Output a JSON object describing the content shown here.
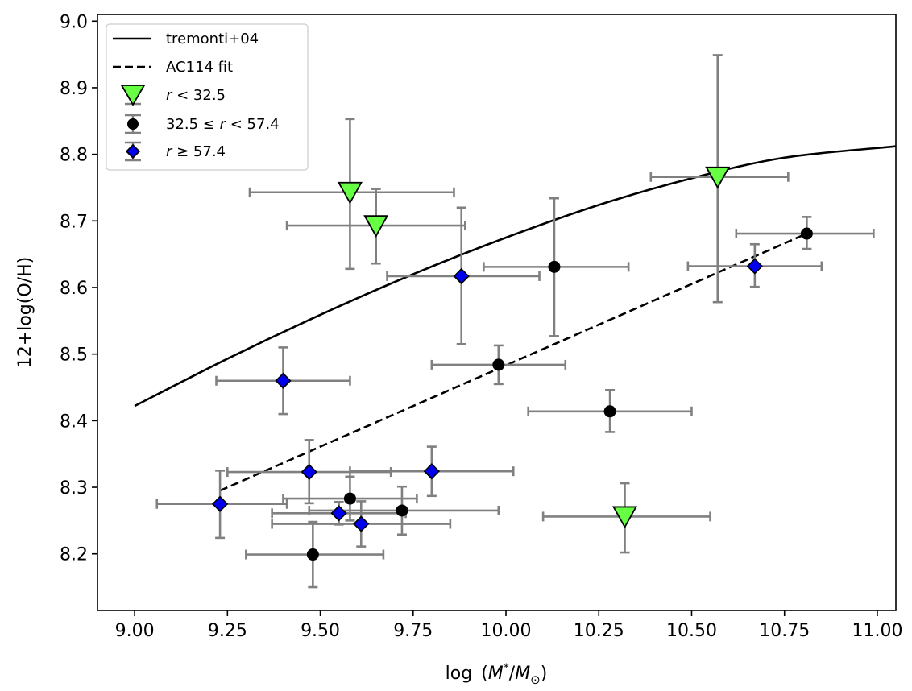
{
  "chart_data": {
    "type": "scatter",
    "title": "",
    "xlabel": "log (M*/M☉)",
    "ylabel": "12+log(O/H)",
    "xlim": [
      8.9,
      11.05
    ],
    "ylim": [
      8.115,
      9.01
    ],
    "xticks": [
      "9.00",
      "9.25",
      "9.50",
      "9.75",
      "10.00",
      "10.25",
      "10.50",
      "10.75",
      "11.00"
    ],
    "yticks": [
      "8.2",
      "8.3",
      "8.4",
      "8.5",
      "8.6",
      "8.7",
      "8.8",
      "8.9",
      "9.0"
    ],
    "grid": false,
    "legend_position": "top-left",
    "error_bar_color": "#808080",
    "lines": [
      {
        "name": "tremonti+04",
        "style": "solid",
        "color": "#000000",
        "x": [
          9.0,
          9.25,
          9.5,
          9.75,
          10.0,
          10.25,
          10.5,
          10.75,
          11.05
        ],
        "y": [
          8.422,
          8.493,
          8.559,
          8.62,
          8.675,
          8.724,
          8.764,
          8.795,
          8.812
        ]
      },
      {
        "name": "AC114 fit",
        "style": "dashed",
        "color": "#000000",
        "x": [
          9.23,
          10.81
        ],
        "y": [
          8.295,
          8.681
        ]
      }
    ],
    "series": [
      {
        "name": "r < 32.5",
        "legend_label": "r < 32.5",
        "marker": "triangle-down",
        "color": "#66ff44",
        "points": [
          {
            "x": 9.58,
            "y": 8.743,
            "xerr": [
              0.27,
              0.28
            ],
            "yerr": [
              0.115,
              0.11
            ]
          },
          {
            "x": 9.65,
            "y": 8.693,
            "xerr": [
              0.24,
              0.24
            ],
            "yerr": [
              0.057,
              0.055
            ]
          },
          {
            "x": 10.57,
            "y": 8.766,
            "xerr": [
              0.18,
              0.19
            ],
            "yerr": [
              0.188,
              0.183
            ]
          },
          {
            "x": 10.32,
            "y": 8.256,
            "xerr": [
              0.22,
              0.23
            ],
            "yerr": [
              0.054,
              0.05
            ]
          }
        ]
      },
      {
        "name": "32.5 ≤ r < 57.4",
        "legend_label": "32.5 ≤ r < 57.4",
        "marker": "circle",
        "color": "#000000",
        "points": [
          {
            "x": 10.81,
            "y": 8.681,
            "xerr": [
              0.19,
              0.18
            ],
            "yerr": [
              0.023,
              0.025
            ]
          },
          {
            "x": 10.13,
            "y": 8.631,
            "xerr": [
              0.19,
              0.2
            ],
            "yerr": [
              0.104,
              0.103
            ]
          },
          {
            "x": 9.98,
            "y": 8.484,
            "xerr": [
              0.18,
              0.18
            ],
            "yerr": [
              0.029,
              0.029
            ]
          },
          {
            "x": 10.28,
            "y": 8.414,
            "xerr": [
              0.22,
              0.22
            ],
            "yerr": [
              0.031,
              0.032
            ]
          },
          {
            "x": 9.58,
            "y": 8.283,
            "xerr": [
              0.18,
              0.18
            ],
            "yerr": [
              0.033,
              0.033
            ]
          },
          {
            "x": 9.72,
            "y": 8.265,
            "xerr": [
              0.25,
              0.26
            ],
            "yerr": [
              0.036,
              0.036
            ]
          },
          {
            "x": 9.48,
            "y": 8.199,
            "xerr": [
              0.18,
              0.19
            ],
            "yerr": [
              0.049,
              0.049
            ]
          }
        ]
      },
      {
        "name": "r ≥ 57.4",
        "legend_label": "r ≥ 57.4",
        "marker": "diamond",
        "color": "#0000ee",
        "points": [
          {
            "x": 9.88,
            "y": 8.617,
            "xerr": [
              0.2,
              0.21
            ],
            "yerr": [
              0.102,
              0.103
            ]
          },
          {
            "x": 10.67,
            "y": 8.632,
            "xerr": [
              0.18,
              0.18
            ],
            "yerr": [
              0.031,
              0.033
            ]
          },
          {
            "x": 9.4,
            "y": 8.46,
            "xerr": [
              0.18,
              0.18
            ],
            "yerr": [
              0.05,
              0.05
            ]
          },
          {
            "x": 9.47,
            "y": 8.323,
            "xerr": [
              0.22,
              0.22
            ],
            "yerr": [
              0.047,
              0.048
            ]
          },
          {
            "x": 9.8,
            "y": 8.324,
            "xerr": [
              0.22,
              0.22
            ],
            "yerr": [
              0.037,
              0.037
            ]
          },
          {
            "x": 9.23,
            "y": 8.275,
            "xerr": [
              0.17,
              0.18
            ],
            "yerr": [
              0.051,
              0.05
            ]
          },
          {
            "x": 9.55,
            "y": 8.261,
            "xerr": [
              0.18,
              0.18
            ],
            "yerr": [
              0.017,
              0.017
            ]
          },
          {
            "x": 9.61,
            "y": 8.245,
            "xerr": [
              0.24,
              0.24
            ],
            "yerr": [
              0.034,
              0.034
            ]
          }
        ]
      }
    ]
  }
}
